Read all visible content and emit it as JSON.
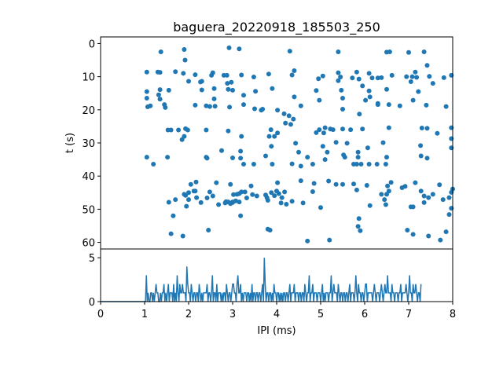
{
  "chart_data": [
    {
      "type": "scatter",
      "title": "baguera_20220918_185503_250",
      "xlabel": "",
      "ylabel": "t (s)",
      "xlim": [
        0,
        8
      ],
      "ylim": [
        62,
        -2
      ],
      "y_inverted": true,
      "yticks": [
        "0",
        "10",
        "20",
        "30",
        "40",
        "50",
        "60"
      ],
      "color": "#1f77b4",
      "grid": false,
      "points": [
        [
          1.37,
          2.5
        ],
        [
          1.9,
          1.8
        ],
        [
          1.92,
          5.0
        ],
        [
          2.92,
          1.3
        ],
        [
          3.15,
          1.6
        ],
        [
          4.3,
          2.3
        ],
        [
          5.4,
          2.5
        ],
        [
          6.5,
          2.6
        ],
        [
          6.57,
          2.5
        ],
        [
          7.0,
          2.7
        ],
        [
          7.35,
          2.5
        ],
        [
          1.05,
          8.6
        ],
        [
          1.3,
          8.6
        ],
        [
          1.35,
          8.7
        ],
        [
          1.7,
          8.5
        ],
        [
          1.88,
          9.0
        ],
        [
          2.15,
          9.4
        ],
        [
          2.52,
          9.6
        ],
        [
          2.55,
          8.8
        ],
        [
          2.8,
          9.6
        ],
        [
          2.87,
          9.6
        ],
        [
          3.2,
          9.5
        ],
        [
          3.48,
          10.1
        ],
        [
          3.82,
          9.2
        ],
        [
          4.35,
          9.5
        ],
        [
          4.4,
          8.2
        ],
        [
          4.95,
          10.6
        ],
        [
          5.05,
          9.8
        ],
        [
          5.4,
          8.8
        ],
        [
          5.45,
          10.1
        ],
        [
          5.72,
          10.4
        ],
        [
          5.82,
          8.6
        ],
        [
          5.87,
          10.7
        ],
        [
          6.17,
          10.4
        ],
        [
          6.3,
          10.4
        ],
        [
          6.38,
          10.3
        ],
        [
          6.62,
          9.6
        ],
        [
          6.95,
          10.0
        ],
        [
          7.08,
          10.0
        ],
        [
          7.18,
          10.2
        ],
        [
          7.47,
          9.9
        ],
        [
          7.8,
          10.3
        ],
        [
          7.97,
          9.6
        ],
        [
          7.15,
          8.6
        ],
        [
          7.42,
          6.6
        ],
        [
          6.1,
          9.0
        ],
        [
          1.07,
          19.1
        ],
        [
          1.13,
          18.8
        ],
        [
          1.35,
          13.9
        ],
        [
          1.47,
          19.3
        ],
        [
          2.0,
          11.4
        ],
        [
          2.27,
          11.6
        ],
        [
          2.3,
          14.0
        ],
        [
          2.58,
          13.6
        ],
        [
          2.6,
          18.9
        ],
        [
          2.88,
          12.0
        ],
        [
          2.9,
          13.8
        ],
        [
          2.97,
          11.7
        ],
        [
          3.0,
          14.1
        ],
        [
          3.25,
          18.4
        ],
        [
          3.52,
          14.4
        ],
        [
          3.9,
          13.6
        ],
        [
          4.4,
          16.1
        ],
        [
          4.9,
          14.2
        ],
        [
          5.4,
          11.2
        ],
        [
          5.47,
          14.1
        ],
        [
          5.95,
          12.8
        ],
        [
          6.1,
          14.3
        ],
        [
          6.5,
          13.8
        ],
        [
          7.05,
          11.5
        ],
        [
          7.22,
          14.5
        ],
        [
          7.55,
          12.0
        ],
        [
          1.05,
          16.5
        ],
        [
          1.55,
          14.1
        ],
        [
          1.35,
          16.8
        ],
        [
          2.3,
          11.4
        ],
        [
          6.02,
          17.1
        ],
        [
          6.3,
          18.1
        ],
        [
          1.05,
          14.5
        ],
        [
          1.32,
          15.5
        ],
        [
          1.45,
          18.4
        ],
        [
          2.15,
          18.6
        ],
        [
          2.4,
          18.8
        ],
        [
          2.58,
          16.7
        ],
        [
          2.93,
          19.2
        ],
        [
          3.25,
          15.6
        ],
        [
          3.5,
          19.7
        ],
        [
          3.68,
          19.8
        ],
        [
          4.02,
          20.1
        ],
        [
          4.28,
          21.8
        ],
        [
          4.17,
          21.2
        ],
        [
          4.55,
          18.8
        ],
        [
          4.97,
          17.1
        ],
        [
          5.5,
          19.8
        ],
        [
          5.88,
          21.3
        ],
        [
          5.5,
          16.5
        ],
        [
          6.12,
          16.1
        ],
        [
          6.3,
          18.4
        ],
        [
          6.55,
          18.4
        ],
        [
          6.8,
          18.8
        ],
        [
          7.1,
          17.1
        ],
        [
          7.4,
          18.6
        ],
        [
          7.85,
          19.0
        ],
        [
          3.65,
          20.1
        ],
        [
          2.48,
          19.0
        ],
        [
          1.53,
          26.1
        ],
        [
          1.6,
          26.1
        ],
        [
          1.77,
          26.1
        ],
        [
          1.93,
          25.7
        ],
        [
          1.98,
          26.1
        ],
        [
          2.4,
          26.1
        ],
        [
          2.9,
          26.4
        ],
        [
          3.87,
          26.0
        ],
        [
          4.02,
          27.0
        ],
        [
          4.2,
          24.0
        ],
        [
          4.32,
          24.4
        ],
        [
          5.1,
          25.4
        ],
        [
          5.07,
          27.0
        ],
        [
          5.22,
          25.8
        ],
        [
          5.28,
          26.0
        ],
        [
          5.5,
          25.8
        ],
        [
          5.68,
          26.0
        ],
        [
          5.35,
          29.8
        ],
        [
          5.95,
          25.8
        ],
        [
          6.07,
          31.5
        ],
        [
          6.55,
          25.4
        ],
        [
          7.3,
          25.5
        ],
        [
          7.42,
          25.6
        ],
        [
          7.65,
          27.1
        ],
        [
          7.97,
          25.4
        ],
        [
          4.97,
          26.0
        ],
        [
          4.38,
          22.8
        ],
        [
          4.9,
          26.9
        ],
        [
          2.75,
          32.3
        ],
        [
          3.2,
          28.0
        ],
        [
          3.83,
          28.0
        ],
        [
          3.95,
          28.0
        ],
        [
          3.88,
          31.0
        ],
        [
          3.18,
          32.5
        ],
        [
          4.43,
          30.1
        ],
        [
          4.5,
          32.8
        ],
        [
          5.05,
          31.0
        ],
        [
          5.6,
          30.1
        ],
        [
          6.42,
          29.9
        ],
        [
          7.27,
          30.8
        ],
        [
          7.97,
          31.5
        ],
        [
          7.97,
          28.7
        ],
        [
          5.15,
          32.8
        ],
        [
          5.85,
          32.8
        ],
        [
          1.9,
          28.0
        ],
        [
          1.85,
          29.0
        ],
        [
          1.05,
          34.3
        ],
        [
          1.52,
          34.3
        ],
        [
          1.2,
          36.4
        ],
        [
          2.4,
          34.3
        ],
        [
          2.42,
          34.6
        ],
        [
          3.0,
          34.5
        ],
        [
          3.18,
          34.6
        ],
        [
          3.25,
          36.4
        ],
        [
          3.48,
          36.4
        ],
        [
          3.75,
          33.9
        ],
        [
          3.9,
          36.4
        ],
        [
          4.35,
          36.3
        ],
        [
          4.7,
          34.3
        ],
        [
          4.82,
          36.4
        ],
        [
          4.55,
          37.0
        ],
        [
          5.52,
          33.6
        ],
        [
          5.55,
          34.3
        ],
        [
          5.85,
          34.3
        ],
        [
          5.75,
          36.4
        ],
        [
          5.82,
          36.4
        ],
        [
          5.92,
          36.4
        ],
        [
          6.1,
          36.4
        ],
        [
          6.28,
          36.4
        ],
        [
          6.5,
          34.3
        ],
        [
          6.48,
          36.4
        ],
        [
          7.42,
          34.6
        ],
        [
          7.28,
          33.9
        ],
        [
          5.1,
          35.0
        ],
        [
          1.55,
          47.9
        ],
        [
          1.9,
          45.5
        ],
        [
          1.93,
          45.8
        ],
        [
          2.0,
          45.0
        ],
        [
          2.05,
          42.5
        ],
        [
          2.12,
          44.5
        ],
        [
          2.17,
          41.8
        ],
        [
          2.42,
          46.6
        ],
        [
          2.48,
          44.8
        ],
        [
          2.55,
          46.0
        ],
        [
          2.63,
          42.0
        ],
        [
          2.95,
          42.5
        ],
        [
          3.0,
          47.8
        ],
        [
          3.02,
          45.6
        ],
        [
          3.07,
          47.5
        ],
        [
          3.1,
          45.5
        ],
        [
          3.15,
          45.3
        ],
        [
          3.2,
          44.8
        ],
        [
          3.28,
          44.8
        ],
        [
          3.32,
          46.6
        ],
        [
          3.45,
          45.6
        ],
        [
          3.75,
          45.7
        ],
        [
          3.8,
          47.3
        ],
        [
          3.88,
          45.0
        ],
        [
          4.0,
          44.5
        ],
        [
          4.05,
          45.3
        ],
        [
          4.12,
          46.5
        ],
        [
          4.18,
          44.8
        ],
        [
          4.02,
          42.0
        ],
        [
          4.35,
          47.6
        ],
        [
          4.6,
          48.1
        ],
        [
          4.82,
          44.7
        ],
        [
          4.55,
          41.4
        ],
        [
          4.85,
          42.2
        ],
        [
          5.18,
          41.5
        ],
        [
          5.35,
          42.5
        ],
        [
          5.5,
          42.5
        ],
        [
          5.75,
          42.4
        ],
        [
          5.82,
          44.2
        ],
        [
          6.05,
          42.8
        ],
        [
          6.38,
          45.5
        ],
        [
          6.45,
          47.1
        ],
        [
          6.5,
          45.5
        ],
        [
          6.52,
          43.0
        ],
        [
          6.6,
          41.9
        ],
        [
          6.85,
          43.5
        ],
        [
          6.92,
          43.1
        ],
        [
          7.05,
          49.3
        ],
        [
          7.1,
          49.3
        ],
        [
          7.15,
          42.0
        ],
        [
          7.28,
          44.5
        ],
        [
          7.35,
          46.0
        ],
        [
          7.45,
          46.5
        ],
        [
          7.55,
          45.5
        ],
        [
          7.7,
          42.6
        ],
        [
          7.78,
          47.1
        ],
        [
          7.92,
          46.5
        ],
        [
          7.97,
          44.9
        ],
        [
          8.0,
          43.9
        ],
        [
          2.0,
          47.1
        ],
        [
          2.15,
          44.5
        ],
        [
          2.18,
          46.5
        ],
        [
          3.95,
          45.9
        ],
        [
          3.55,
          46.0
        ],
        [
          3.42,
          43.0
        ],
        [
          3.78,
          46.5
        ],
        [
          6.55,
          44.5
        ],
        [
          1.7,
          47.1
        ],
        [
          2.28,
          48.0
        ],
        [
          2.83,
          48.1
        ],
        [
          2.9,
          47.8
        ],
        [
          3.0,
          48.0
        ],
        [
          3.15,
          47.8
        ],
        [
          2.95,
          48.3
        ],
        [
          2.85,
          47.7
        ],
        [
          1.95,
          49.1
        ],
        [
          1.65,
          52.0
        ],
        [
          1.6,
          57.4
        ],
        [
          1.87,
          58.1
        ],
        [
          2.45,
          56.3
        ],
        [
          3.8,
          56.0
        ],
        [
          3.85,
          56.3
        ],
        [
          4.7,
          59.6
        ],
        [
          5.2,
          59.3
        ],
        [
          5.85,
          55.2
        ],
        [
          5.9,
          56.5
        ],
        [
          6.12,
          48.9
        ],
        [
          6.48,
          48.6
        ],
        [
          6.97,
          56.3
        ],
        [
          7.1,
          57.6
        ],
        [
          7.45,
          58.1
        ],
        [
          7.72,
          59.3
        ],
        [
          7.85,
          56.8
        ],
        [
          7.92,
          51.6
        ],
        [
          7.97,
          49.7
        ],
        [
          4.22,
          48.5
        ],
        [
          5.0,
          49.5
        ],
        [
          5.87,
          52.8
        ],
        [
          7.35,
          48.0
        ],
        [
          4.1,
          48.1
        ],
        [
          2.68,
          48.6
        ],
        [
          3.18,
          52.0
        ]
      ]
    },
    {
      "type": "line",
      "title": "",
      "xlabel": "IPI (ms)",
      "ylabel": "",
      "xlim": [
        0,
        8
      ],
      "ylim": [
        0,
        6
      ],
      "xticks": [
        "0",
        "1",
        "2",
        "3",
        "4",
        "5",
        "6",
        "7",
        "8"
      ],
      "yticks": [
        "0",
        "5"
      ],
      "color": "#1f77b4",
      "bin_width": 0.02,
      "start": 0,
      "values": [
        0,
        0,
        0,
        0,
        0,
        0,
        0,
        0,
        0,
        0,
        0,
        0,
        0,
        0,
        0,
        0,
        0,
        0,
        0,
        0,
        0,
        0,
        0,
        0,
        0,
        0,
        0,
        0,
        0,
        0,
        0,
        0,
        0,
        0,
        0,
        0,
        0,
        0,
        0,
        0,
        0,
        0,
        0,
        0,
        0,
        0,
        0,
        0,
        0,
        0,
        0,
        0,
        3,
        0,
        1,
        0,
        0,
        1,
        1,
        0,
        1,
        0,
        1,
        2,
        1,
        1,
        0,
        0,
        1,
        0,
        1,
        1,
        2,
        0,
        1,
        0,
        1,
        2,
        0,
        1,
        1,
        1,
        0,
        2,
        0,
        1,
        0,
        3,
        1,
        0,
        2,
        1,
        1,
        2,
        1,
        1,
        1,
        0,
        4,
        2,
        1,
        1,
        0,
        2,
        1,
        0,
        1,
        1,
        0,
        1,
        1,
        0,
        2,
        1,
        0,
        1,
        0,
        1,
        1,
        1,
        1,
        2,
        0,
        1,
        1,
        0,
        1,
        3,
        0,
        1,
        1,
        0,
        2,
        0,
        1,
        1,
        1,
        0,
        1,
        0,
        1,
        1,
        0,
        2,
        1,
        0,
        1,
        1,
        0,
        1,
        2,
        2,
        1,
        1,
        0,
        2,
        3,
        1,
        1,
        2,
        0,
        1,
        0,
        1,
        1,
        1,
        0,
        1,
        1,
        0,
        1,
        0,
        2,
        0,
        1,
        1,
        0,
        1,
        1,
        0,
        1,
        1,
        0,
        1,
        2,
        0,
        5,
        2,
        0,
        1,
        1,
        0,
        1,
        1,
        0,
        1,
        0,
        2,
        1,
        1,
        0,
        1,
        1,
        0,
        1,
        0,
        1,
        0,
        1,
        1,
        0,
        1,
        1,
        0,
        1,
        2,
        0,
        1,
        1,
        1,
        2,
        0,
        1,
        1,
        1,
        0,
        1,
        1,
        0,
        1,
        1,
        0,
        2,
        1,
        0,
        1,
        1,
        3,
        0,
        1,
        1,
        2,
        0,
        1,
        1,
        1,
        0,
        1,
        1,
        1,
        0,
        1,
        2,
        0,
        1,
        0,
        1,
        1,
        1,
        0,
        1,
        1,
        3,
        0,
        1,
        2,
        1,
        1,
        1,
        0,
        2,
        1,
        0,
        1,
        1,
        0,
        1,
        1,
        0,
        1,
        1,
        0,
        1,
        2,
        0,
        1,
        1,
        1,
        0,
        1,
        3,
        1,
        0,
        2,
        1,
        1,
        0,
        1,
        1,
        0,
        1,
        2,
        2,
        0,
        1,
        1,
        1,
        1,
        1,
        0,
        1,
        2,
        1,
        0,
        1,
        1,
        1,
        0,
        1,
        2,
        1,
        0,
        1,
        2,
        1,
        1,
        3,
        1,
        1,
        1,
        0,
        2,
        1,
        1,
        0,
        1,
        1,
        1,
        0,
        1,
        1,
        2,
        0,
        1,
        1,
        1,
        1,
        2,
        1,
        0,
        1,
        3,
        1,
        1,
        0,
        2,
        1,
        1,
        2,
        1,
        0,
        1,
        1,
        0,
        2
      ]
    }
  ]
}
